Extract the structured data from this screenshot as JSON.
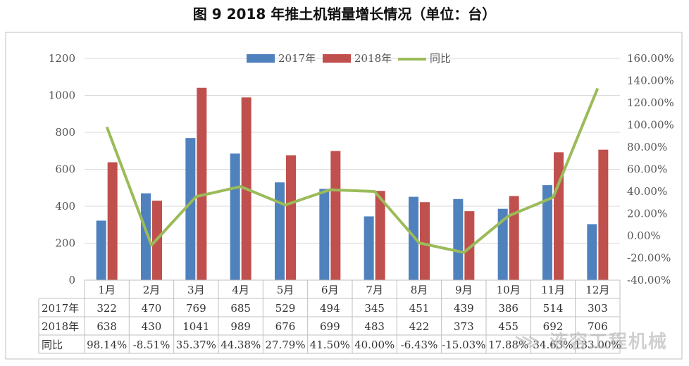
{
  "page": {
    "title": "图 9   2018 年推土机销量增长情况（单位：台）",
    "watermark": "⋙ 液容工程机械"
  },
  "colors": {
    "bar2017": "#4F81BD",
    "bar2018": "#C0504D",
    "line": "#9BBB59",
    "grid": "#D9D9D9",
    "frame": "#BFBFBF"
  },
  "chart_data": {
    "type": "bar+line",
    "categories": [
      "1月",
      "2月",
      "3月",
      "4月",
      "5月",
      "6月",
      "7月",
      "8月",
      "9月",
      "10月",
      "11月",
      "12月"
    ],
    "series": [
      {
        "name": "2017年",
        "type": "bar",
        "axis": "left",
        "values": [
          322,
          470,
          769,
          685,
          529,
          494,
          345,
          451,
          439,
          386,
          514,
          303
        ]
      },
      {
        "name": "2018年",
        "type": "bar",
        "axis": "left",
        "values": [
          638,
          430,
          1041,
          989,
          676,
          699,
          483,
          422,
          373,
          455,
          692,
          706
        ]
      },
      {
        "name": "同比",
        "type": "line",
        "axis": "right",
        "values": [
          98.14,
          -8.51,
          35.37,
          44.38,
          27.79,
          41.5,
          40.0,
          -6.43,
          -15.03,
          17.88,
          34.63,
          133.0
        ]
      }
    ],
    "left_axis": {
      "ylim": [
        0,
        1200
      ],
      "ticks": [
        "0",
        "200",
        "400",
        "600",
        "800",
        "1000",
        "1200"
      ]
    },
    "right_axis": {
      "ylim": [
        -40,
        160
      ],
      "ticks": [
        "-40.00%",
        "-20.00%",
        "0.00%",
        "20.00%",
        "40.00%",
        "60.00%",
        "80.00%",
        "100.00%",
        "120.00%",
        "140.00%",
        "160.00%"
      ]
    },
    "table": {
      "row_labels": [
        "2017年",
        "2018年",
        "同比"
      ],
      "rows": [
        [
          "322",
          "470",
          "769",
          "685",
          "529",
          "494",
          "345",
          "451",
          "439",
          "386",
          "514",
          "303"
        ],
        [
          "638",
          "430",
          "1041",
          "989",
          "676",
          "699",
          "483",
          "422",
          "373",
          "455",
          "692",
          "706"
        ],
        [
          "98.14%",
          "-8.51%",
          "35.37%",
          "44.38%",
          "27.79%",
          "41.50%",
          "40.00%",
          "-6.43%",
          "-15.03%",
          "17.88%",
          "34.63%",
          "133.00%"
        ]
      ]
    },
    "legend_position": "top",
    "grid": true
  }
}
